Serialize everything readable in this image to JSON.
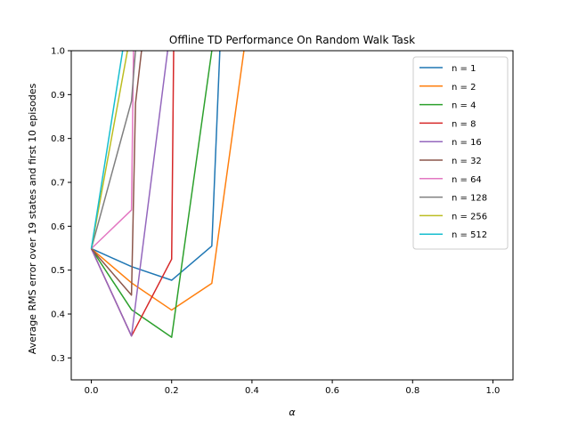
{
  "chart_data": {
    "type": "line",
    "title": "Offline TD Performance On Random Walk Task",
    "xlabel": "α",
    "ylabel": "Average RMS error over 19 states and first 10 episodes",
    "xlim": [
      -0.05,
      1.05
    ],
    "ylim": [
      0.25,
      1.0
    ],
    "xticks": [
      0.0,
      0.2,
      0.4,
      0.6,
      0.8,
      1.0
    ],
    "xtick_labels": [
      "0.0",
      "0.2",
      "0.4",
      "0.6",
      "0.8",
      "1.0"
    ],
    "yticks": [
      0.3,
      0.4,
      0.5,
      0.6,
      0.7,
      0.8,
      0.9,
      1.0
    ],
    "ytick_labels": [
      "0.3",
      "0.4",
      "0.5",
      "0.6",
      "0.7",
      "0.8",
      "0.9",
      "1.0"
    ],
    "legend_position": "top-right",
    "series": [
      {
        "name": "n = 1",
        "color": "#1f77b4",
        "x": [
          0.0,
          0.1,
          0.2,
          0.3,
          0.32
        ],
        "y": [
          0.549,
          0.508,
          0.477,
          0.555,
          1.0
        ]
      },
      {
        "name": "n = 2",
        "color": "#ff7f0e",
        "x": [
          0.0,
          0.1,
          0.2,
          0.3,
          0.38
        ],
        "y": [
          0.549,
          0.471,
          0.409,
          0.47,
          1.0
        ]
      },
      {
        "name": "n = 4",
        "color": "#2ca02c",
        "x": [
          0.0,
          0.1,
          0.2,
          0.3
        ],
        "y": [
          0.549,
          0.41,
          0.347,
          1.0
        ]
      },
      {
        "name": "n = 8",
        "color": "#d62728",
        "x": [
          0.0,
          0.1,
          0.2,
          0.205
        ],
        "y": [
          0.549,
          0.35,
          0.525,
          1.0
        ]
      },
      {
        "name": "n = 16",
        "color": "#9467bd",
        "x": [
          0.0,
          0.1,
          0.19
        ],
        "y": [
          0.549,
          0.35,
          1.0
        ]
      },
      {
        "name": "n = 32",
        "color": "#8c564b",
        "x": [
          0.0,
          0.1,
          0.11,
          0.125
        ],
        "y": [
          0.549,
          0.443,
          0.88,
          1.0
        ]
      },
      {
        "name": "n = 64",
        "color": "#e377c2",
        "x": [
          0.0,
          0.1,
          0.105
        ],
        "y": [
          0.549,
          0.637,
          1.0
        ]
      },
      {
        "name": "n = 128",
        "color": "#7f7f7f",
        "x": [
          0.0,
          0.1,
          0.11
        ],
        "y": [
          0.549,
          0.885,
          1.0
        ]
      },
      {
        "name": "n = 256",
        "color": "#bcbd22",
        "x": [
          0.0,
          0.09
        ],
        "y": [
          0.549,
          1.0
        ]
      },
      {
        "name": "n = 512",
        "color": "#17becf",
        "x": [
          0.0,
          0.078
        ],
        "y": [
          0.549,
          1.0
        ]
      }
    ]
  }
}
